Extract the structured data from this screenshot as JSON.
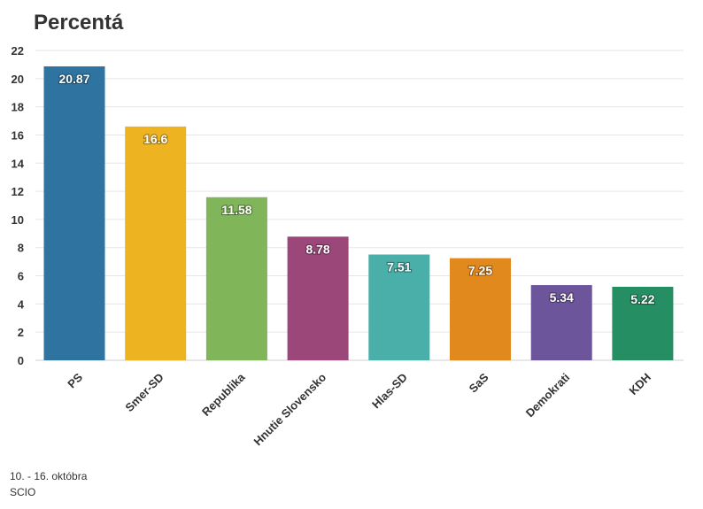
{
  "chart_data": {
    "type": "bar",
    "title": "Percentá",
    "categories": [
      "PS",
      "Smer-SD",
      "Republika",
      "Hnutie Slovensko",
      "Hlas-SD",
      "SaS",
      "Demokrati",
      "KDH"
    ],
    "values": [
      20.87,
      16.6,
      11.58,
      8.78,
      7.51,
      7.25,
      5.34,
      5.22
    ],
    "value_labels": [
      "20.87",
      "16.6",
      "11.58",
      "8.78",
      "7.51",
      "7.25",
      "5.34",
      "5.22"
    ],
    "colors": [
      "#2f74a0",
      "#eeb321",
      "#80b55a",
      "#9b477a",
      "#4aaea9",
      "#e2891e",
      "#6d559c",
      "#268e63"
    ],
    "ylim": [
      0,
      22
    ],
    "yticks": [
      0,
      2,
      4,
      6,
      8,
      10,
      12,
      14,
      16,
      18,
      20,
      22
    ],
    "grid": true,
    "xlabel": "",
    "ylabel": ""
  },
  "footer": {
    "date": "10. - 16. októbra",
    "source": "SCIO"
  }
}
